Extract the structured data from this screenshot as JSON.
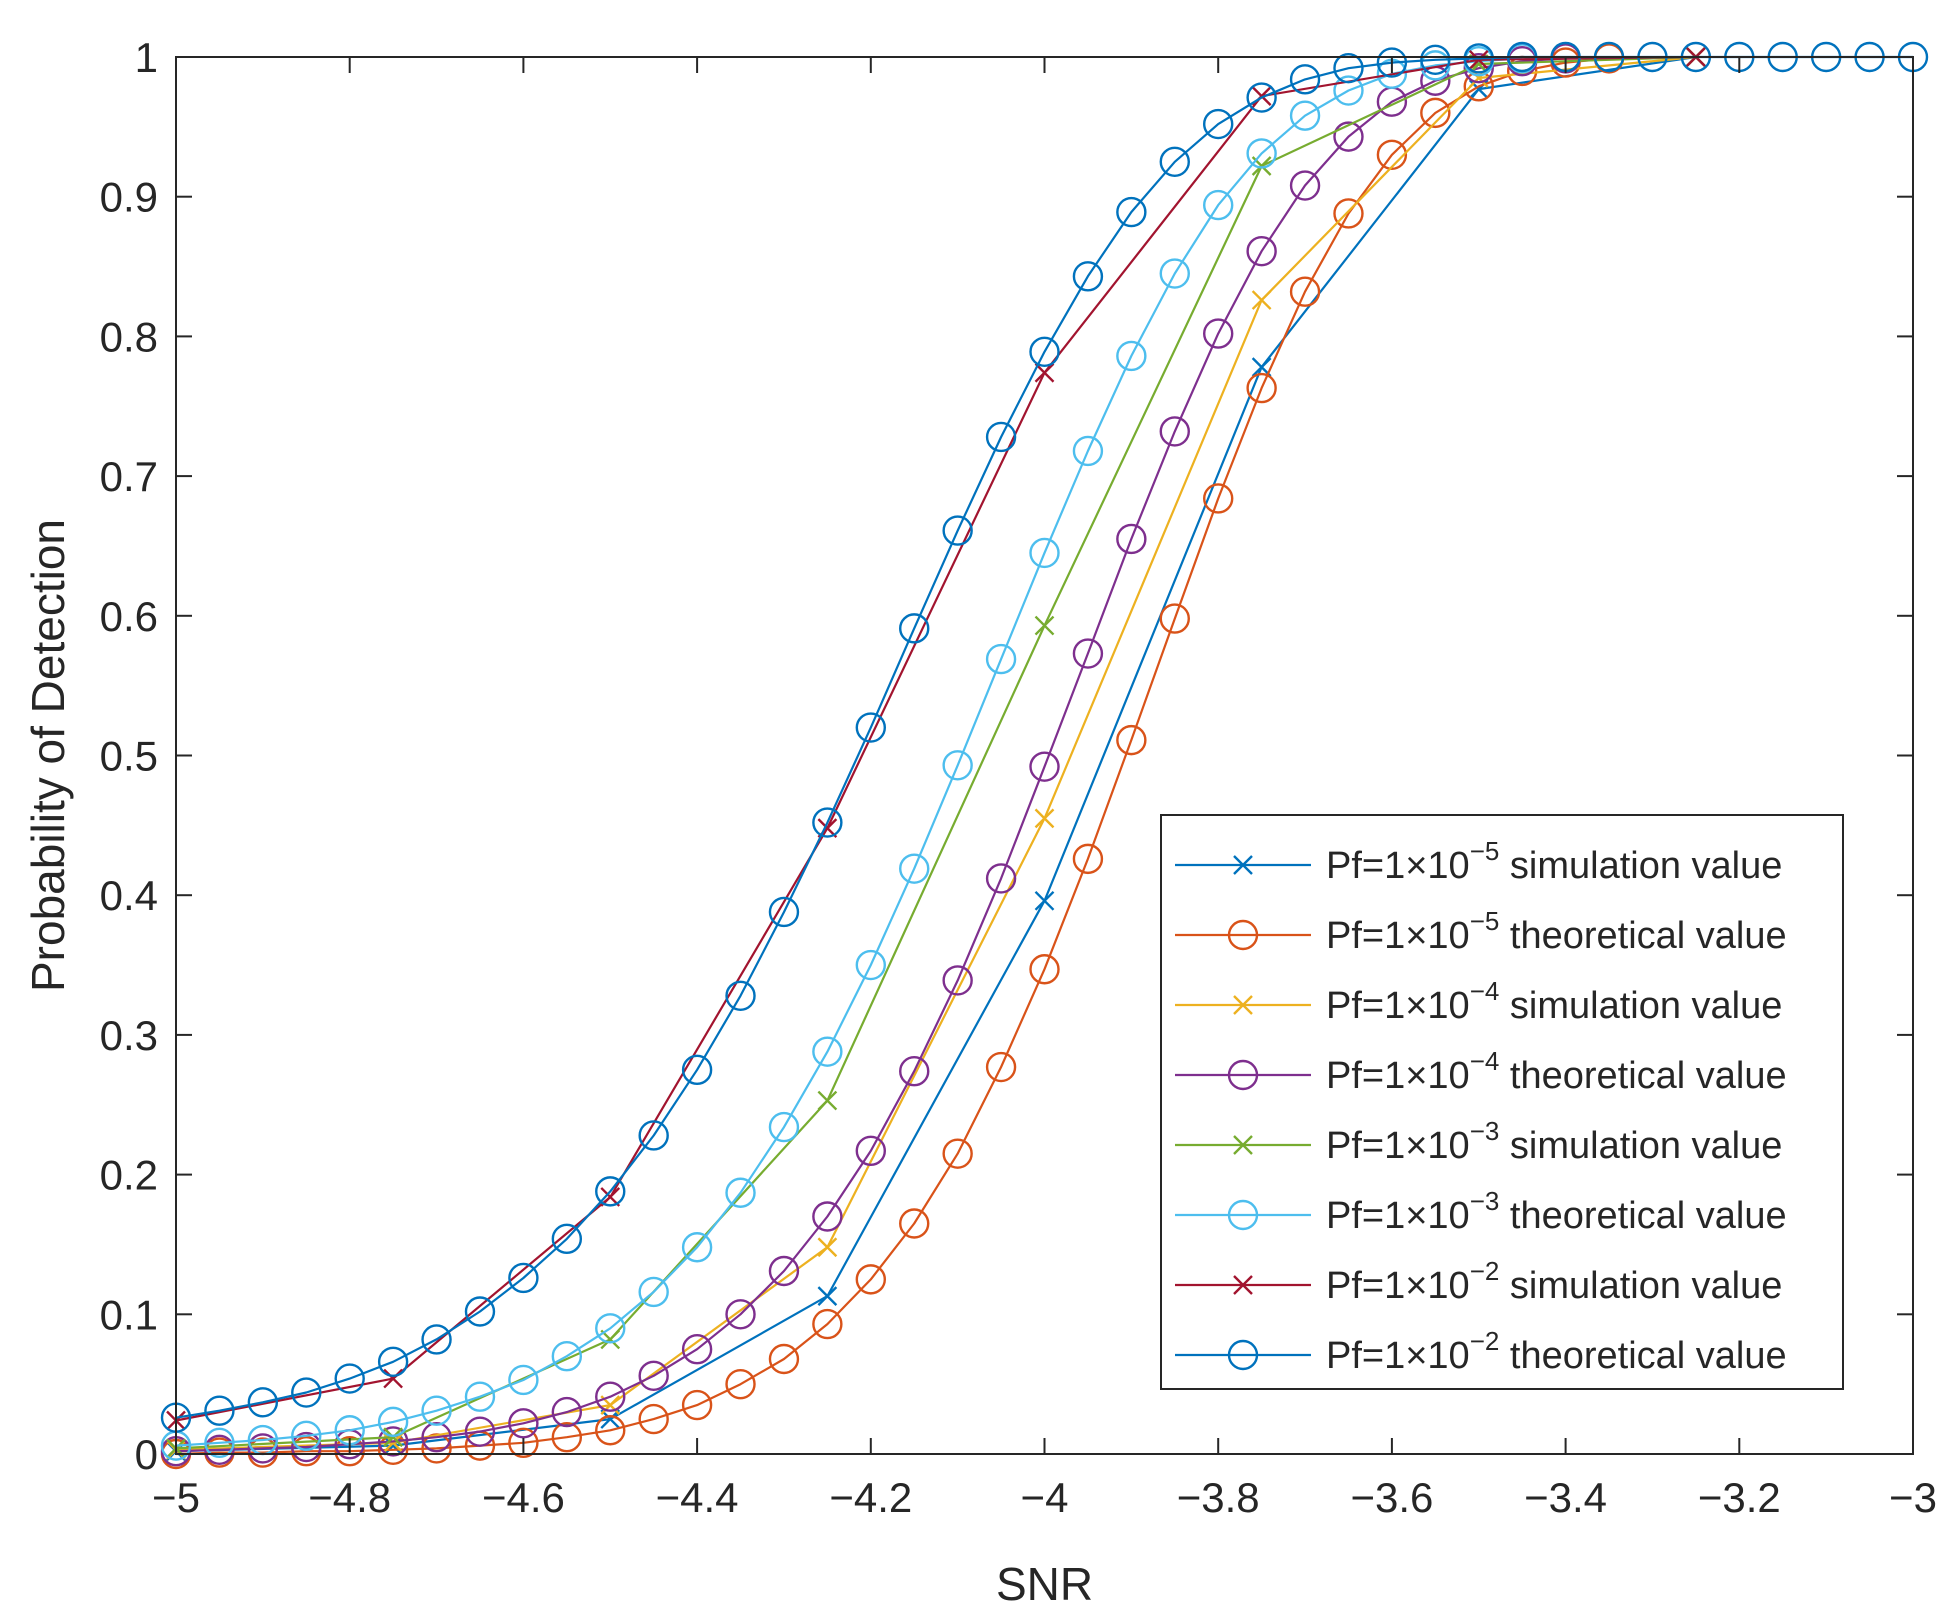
{
  "chart_data": {
    "type": "line",
    "title": "",
    "xlabel": "SNR",
    "ylabel": "Probability of Detection",
    "xlim": [
      -5,
      -3
    ],
    "ylim": [
      0,
      1
    ],
    "grid": false,
    "legend_position": "bottom-right",
    "x_ticks": [
      -5,
      -4.8,
      -4.6,
      -4.4,
      -4.2,
      -4,
      -3.8,
      -3.6,
      -3.4,
      -3.2,
      -3
    ],
    "x_tick_labels": [
      "−5",
      "−4.8",
      "−4.6",
      "−4.4",
      "−4.2",
      "−4",
      "−3.8",
      "−3.6",
      "−3.4",
      "−3.2",
      "−3"
    ],
    "y_ticks": [
      0,
      0.1,
      0.2,
      0.3,
      0.4,
      0.5,
      0.6,
      0.7,
      0.8,
      0.9,
      1
    ],
    "y_tick_labels": [
      "0",
      "0.1",
      "0.2",
      "0.3",
      "0.4",
      "0.5",
      "0.6",
      "0.7",
      "0.8",
      "0.9",
      "1"
    ],
    "series": [
      {
        "name_prefix": "Pf=1×10",
        "name_exp": "−5",
        "name_suffix": " simulation value",
        "color": "#0072BD",
        "marker": "x",
        "x": [
          -5,
          -4.75,
          -4.5,
          -4.25,
          -4,
          -3.75,
          -3.5,
          -3.25
        ],
        "y": [
          0.002,
          0.006,
          0.025,
          0.113,
          0.396,
          0.778,
          0.977,
          1.0
        ]
      },
      {
        "name_prefix": "Pf=1×10",
        "name_exp": "−5",
        "name_suffix": " theoretical value",
        "color": "#D95319",
        "marker": "o",
        "x": [
          -5,
          -4.95,
          -4.9,
          -4.85,
          -4.8,
          -4.75,
          -4.7,
          -4.65,
          -4.6,
          -4.55,
          -4.5,
          -4.45,
          -4.4,
          -4.35,
          -4.3,
          -4.25,
          -4.2,
          -4.15,
          -4.1,
          -4.05,
          -4,
          -3.95,
          -3.9,
          -3.85,
          -3.8,
          -3.75,
          -3.7,
          -3.65,
          -3.6,
          -3.55,
          -3.5,
          -3.45,
          -3.4,
          -3.35
        ],
        "y": [
          0.0,
          0.001,
          0.001,
          0.002,
          0.002,
          0.003,
          0.004,
          0.006,
          0.008,
          0.012,
          0.017,
          0.025,
          0.035,
          0.05,
          0.068,
          0.093,
          0.125,
          0.165,
          0.215,
          0.277,
          0.347,
          0.426,
          0.511,
          0.598,
          0.684,
          0.763,
          0.832,
          0.888,
          0.93,
          0.96,
          0.979,
          0.99,
          0.996,
          0.999
        ]
      },
      {
        "name_prefix": "Pf=1×10",
        "name_exp": "−4",
        "name_suffix": " simulation value",
        "color": "#EDB120",
        "marker": "x",
        "x": [
          -5,
          -4.75,
          -4.5,
          -4.25,
          -4,
          -3.75,
          -3.5,
          -3.25
        ],
        "y": [
          0.003,
          0.008,
          0.035,
          0.148,
          0.455,
          0.826,
          0.985,
          1.0
        ]
      },
      {
        "name_prefix": "Pf=1×10",
        "name_exp": "−4",
        "name_suffix": " theoretical value",
        "color": "#7E2F8E",
        "marker": "o",
        "x": [
          -5,
          -4.95,
          -4.9,
          -4.85,
          -4.8,
          -4.75,
          -4.7,
          -4.65,
          -4.6,
          -4.55,
          -4.5,
          -4.45,
          -4.4,
          -4.35,
          -4.3,
          -4.25,
          -4.2,
          -4.15,
          -4.1,
          -4.05,
          -4,
          -3.95,
          -3.9,
          -3.85,
          -3.8,
          -3.75,
          -3.7,
          -3.65,
          -3.6,
          -3.55,
          -3.5,
          -3.45,
          -3.4
        ],
        "y": [
          0.002,
          0.003,
          0.004,
          0.005,
          0.007,
          0.009,
          0.012,
          0.016,
          0.022,
          0.03,
          0.041,
          0.056,
          0.075,
          0.1,
          0.131,
          0.17,
          0.217,
          0.274,
          0.339,
          0.412,
          0.492,
          0.573,
          0.655,
          0.732,
          0.802,
          0.861,
          0.908,
          0.943,
          0.968,
          0.983,
          0.992,
          0.997,
          0.999
        ]
      },
      {
        "name_prefix": "Pf=1×10",
        "name_exp": "−3",
        "name_suffix": " simulation value",
        "color": "#77AC30",
        "marker": "x",
        "x": [
          -5,
          -4.75,
          -4.5,
          -4.25,
          -4,
          -3.75,
          -3.5,
          -3.25
        ],
        "y": [
          0.004,
          0.012,
          0.082,
          0.253,
          0.593,
          0.922,
          0.995,
          1.0
        ]
      },
      {
        "name_prefix": "Pf=1×10",
        "name_exp": "−3",
        "name_suffix": " theoretical value",
        "color": "#4DBEEE",
        "marker": "o",
        "x": [
          -5,
          -4.95,
          -4.9,
          -4.85,
          -4.8,
          -4.75,
          -4.7,
          -4.65,
          -4.6,
          -4.55,
          -4.5,
          -4.45,
          -4.4,
          -4.35,
          -4.3,
          -4.25,
          -4.2,
          -4.15,
          -4.1,
          -4.05,
          -4,
          -3.95,
          -3.9,
          -3.85,
          -3.8,
          -3.75,
          -3.7,
          -3.65,
          -3.6,
          -3.55,
          -3.5,
          -3.45
        ],
        "y": [
          0.006,
          0.008,
          0.01,
          0.013,
          0.017,
          0.023,
          0.031,
          0.041,
          0.053,
          0.07,
          0.09,
          0.116,
          0.148,
          0.187,
          0.234,
          0.288,
          0.35,
          0.419,
          0.493,
          0.569,
          0.645,
          0.718,
          0.786,
          0.845,
          0.894,
          0.931,
          0.958,
          0.976,
          0.988,
          0.994,
          0.997,
          0.999
        ]
      },
      {
        "name_prefix": "Pf=1×10",
        "name_exp": "−2",
        "name_suffix": " simulation value",
        "color": "#A2142F",
        "marker": "x",
        "x": [
          -5,
          -4.75,
          -4.5,
          -4.25,
          -4,
          -3.75,
          -3.5,
          -3.25
        ],
        "y": [
          0.024,
          0.054,
          0.184,
          0.448,
          0.774,
          0.972,
          0.998,
          1.0
        ]
      },
      {
        "name_prefix": "Pf=1×10",
        "name_exp": "−2",
        "name_suffix": " theoretical value",
        "color": "#0072BD",
        "marker": "o",
        "x": [
          -5,
          -4.95,
          -4.9,
          -4.85,
          -4.8,
          -4.75,
          -4.7,
          -4.65,
          -4.6,
          -4.55,
          -4.5,
          -4.45,
          -4.4,
          -4.35,
          -4.3,
          -4.25,
          -4.2,
          -4.15,
          -4.1,
          -4.05,
          -4,
          -3.95,
          -3.9,
          -3.85,
          -3.8,
          -3.75,
          -3.7,
          -3.65,
          -3.6,
          -3.55,
          -3.5,
          -3.45,
          -3.4,
          -3.35,
          -3.3,
          -3.25,
          -3.2,
          -3.15,
          -3.1,
          -3.05,
          -3
        ],
        "y": [
          0.026,
          0.031,
          0.037,
          0.044,
          0.054,
          0.066,
          0.082,
          0.102,
          0.126,
          0.154,
          0.188,
          0.228,
          0.275,
          0.328,
          0.388,
          0.452,
          0.52,
          0.591,
          0.661,
          0.728,
          0.789,
          0.843,
          0.889,
          0.925,
          0.952,
          0.971,
          0.984,
          0.992,
          0.996,
          0.998,
          0.999,
          1.0,
          1.0,
          1.0,
          1.0,
          1.0,
          1.0,
          1.0,
          1.0,
          1.0,
          1.0
        ]
      }
    ]
  }
}
